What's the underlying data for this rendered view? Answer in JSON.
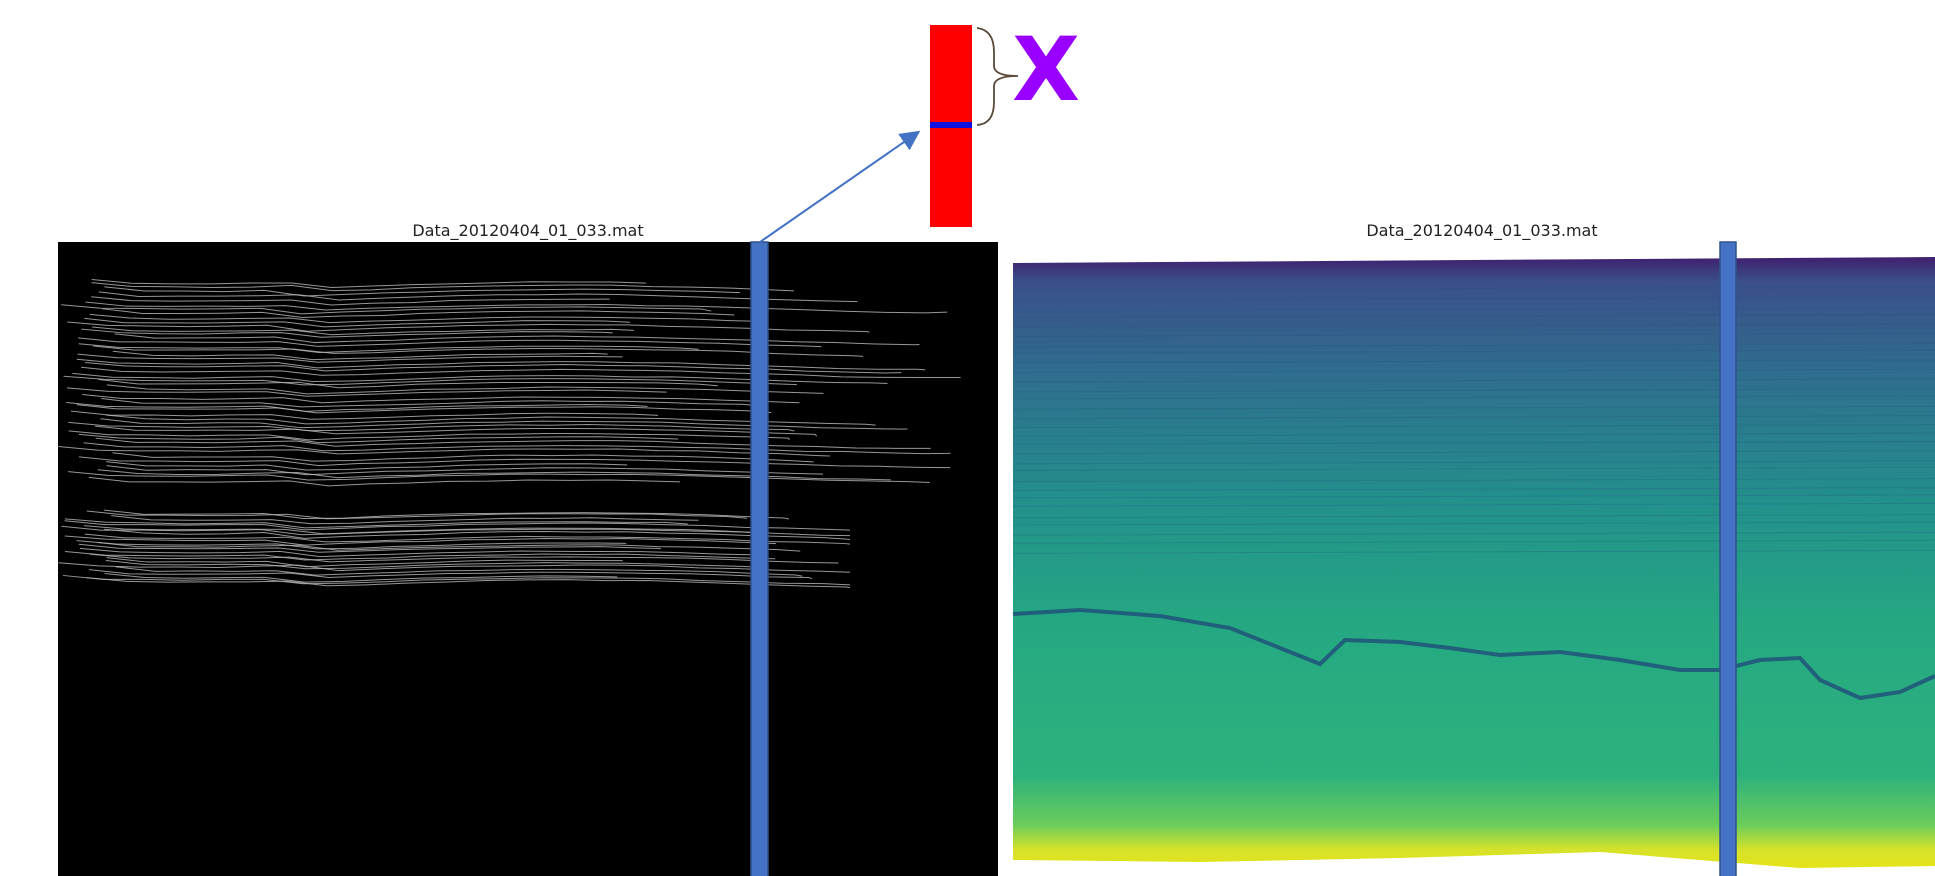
{
  "panels": [
    {
      "title": "Data_20120404_01_033.mat"
    },
    {
      "title": "Data_20120404_01_033.mat"
    }
  ],
  "annotation": {
    "label": "X"
  }
}
